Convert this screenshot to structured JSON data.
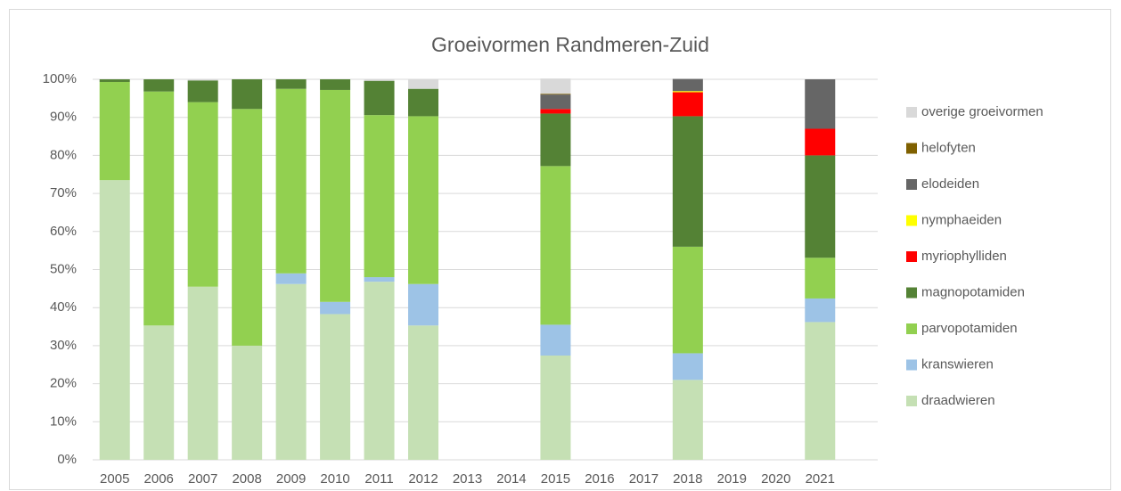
{
  "chart_data": {
    "type": "stacked_bar",
    "title": "Groeivormen Randmeren-Zuid",
    "categories": [
      "2005",
      "2006",
      "2007",
      "2008",
      "2009",
      "2010",
      "2011",
      "2012",
      "2013",
      "2014",
      "2015",
      "2016",
      "2017",
      "2018",
      "2019",
      "2020",
      "2021"
    ],
    "series": [
      {
        "name": "draadwieren",
        "color": "#c5e0b4",
        "values": [
          73.5,
          35.3,
          45.5,
          30,
          46.2,
          38.3,
          46.8,
          35.3,
          null,
          null,
          27.4,
          null,
          null,
          21,
          null,
          null,
          36.2
        ]
      },
      {
        "name": "kranswieren",
        "color": "#9dc3e6",
        "values": [
          0,
          0,
          0,
          0,
          2.8,
          3.2,
          1.2,
          10.9,
          null,
          null,
          8.1,
          null,
          null,
          7,
          null,
          null,
          6.2
        ]
      },
      {
        "name": "parvopotamiden",
        "color": "#92d050",
        "values": [
          25.8,
          61.5,
          48.5,
          62.2,
          48.5,
          55.7,
          42.6,
          44.1,
          null,
          null,
          41.7,
          null,
          null,
          28,
          null,
          null,
          10.7
        ]
      },
      {
        "name": "magnopotamiden",
        "color": "#548235",
        "values": [
          0.7,
          3.2,
          5.7,
          7.8,
          2.5,
          2.8,
          9,
          7.2,
          null,
          null,
          13.8,
          null,
          null,
          34.3,
          null,
          null,
          26.9
        ]
      },
      {
        "name": "myriophylliden",
        "color": "#ff0000",
        "values": [
          0,
          0,
          0,
          0,
          0,
          0,
          0,
          0,
          null,
          null,
          1.2,
          null,
          null,
          6.3,
          null,
          null,
          7
        ]
      },
      {
        "name": "nymphaeiden",
        "color": "#ffff00",
        "values": [
          0,
          0,
          0,
          0,
          0,
          0,
          0,
          0,
          null,
          null,
          0,
          null,
          null,
          0.3,
          null,
          null,
          0
        ]
      },
      {
        "name": "elodeiden",
        "color": "#666666",
        "values": [
          0,
          0,
          0,
          0,
          0,
          0,
          0,
          0,
          null,
          null,
          3.8,
          null,
          null,
          3.2,
          null,
          null,
          13
        ]
      },
      {
        "name": "helofyten",
        "color": "#7f6000",
        "values": [
          0,
          0,
          0,
          0,
          0,
          0,
          0,
          0,
          null,
          null,
          0.2,
          null,
          null,
          0,
          null,
          null,
          0
        ]
      },
      {
        "name": "overige groeivormen",
        "color": "#d9d9d9",
        "values": [
          0,
          0,
          0.3,
          0,
          0,
          0,
          0.4,
          2.5,
          null,
          null,
          4,
          null,
          null,
          0,
          null,
          null,
          0
        ]
      }
    ],
    "ylim": [
      0,
      100
    ],
    "yticks": [
      {
        "value": 0,
        "label": "0%"
      },
      {
        "value": 10,
        "label": "10%"
      },
      {
        "value": 20,
        "label": "20%"
      },
      {
        "value": 30,
        "label": "30%"
      },
      {
        "value": 40,
        "label": "40%"
      },
      {
        "value": 50,
        "label": "50%"
      },
      {
        "value": 60,
        "label": "60%"
      },
      {
        "value": 70,
        "label": "70%"
      },
      {
        "value": 80,
        "label": "80%"
      },
      {
        "value": 90,
        "label": "90%"
      },
      {
        "value": 100,
        "label": "100%"
      }
    ],
    "grid": true,
    "legend": "right"
  }
}
